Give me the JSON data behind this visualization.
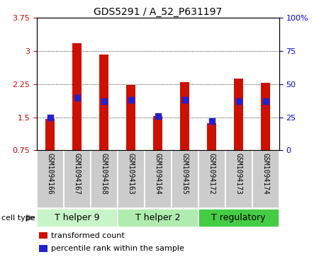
{
  "title": "GDS5291 / A_52_P631197",
  "samples": [
    "GSM1094166",
    "GSM1094167",
    "GSM1094168",
    "GSM1094163",
    "GSM1094164",
    "GSM1094165",
    "GSM1094172",
    "GSM1094173",
    "GSM1094174"
  ],
  "transformed_counts": [
    1.46,
    3.18,
    2.93,
    2.23,
    1.52,
    2.29,
    1.37,
    2.37,
    2.28
  ],
  "percentile_ranks": [
    25,
    40,
    37,
    38,
    26,
    38,
    22,
    37,
    37
  ],
  "ylim_left": [
    0.75,
    3.75
  ],
  "ylim_right": [
    0,
    100
  ],
  "yticks_left": [
    0.75,
    1.5,
    2.25,
    3.0,
    3.75
  ],
  "ytick_labels_left": [
    "0.75",
    "1.5",
    "2.25",
    "3",
    "3.75"
  ],
  "yticks_right": [
    0,
    25,
    50,
    75,
    100
  ],
  "ytick_labels_right": [
    "0",
    "25",
    "50",
    "75",
    "100%"
  ],
  "cell_types": [
    {
      "label": "T helper 9",
      "samples": [
        0,
        1,
        2
      ],
      "color": "#c8f5c8"
    },
    {
      "label": "T helper 2",
      "samples": [
        3,
        4,
        5
      ],
      "color": "#b0ecb0"
    },
    {
      "label": "T regulatory",
      "samples": [
        6,
        7,
        8
      ],
      "color": "#44cc44"
    }
  ],
  "bar_color": "#cc1100",
  "dot_color": "#2222cc",
  "bar_width": 0.35,
  "dot_size": 28,
  "bg_color": "#ffffff",
  "sample_box_color": "#cccccc",
  "title_fontsize": 10,
  "tick_fontsize": 8,
  "sample_fontsize": 7,
  "cell_type_fontsize": 9,
  "legend_fontsize": 8,
  "cell_type_label": "cell type",
  "legend_items": [
    "transformed count",
    "percentile rank within the sample"
  ]
}
